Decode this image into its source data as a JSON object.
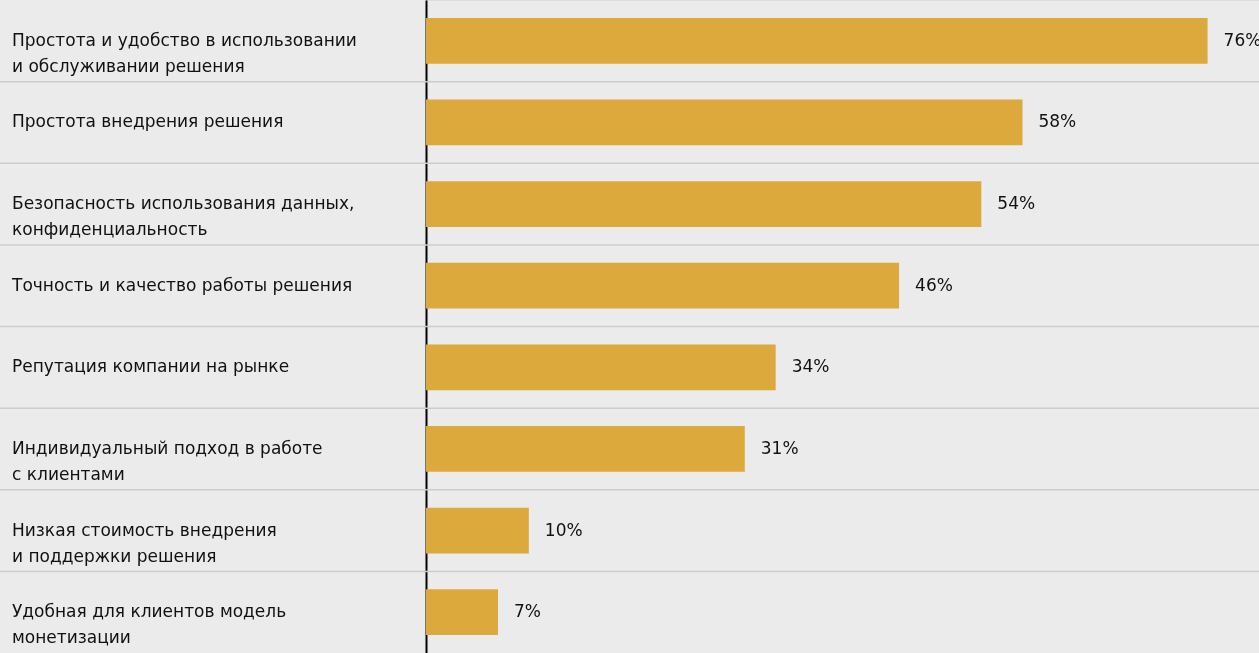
{
  "chart_data": {
    "type": "bar",
    "orientation": "horizontal",
    "categories": [
      "Простота и удобство в использовании и обслуживании решения",
      "Простота внедрения решения",
      "Безопасность использования данных, конфиденциальность",
      "Точность и качество работы решения",
      "Репутация компании на рынке",
      "Индивидуальный подход в работе с клиентами",
      "Низкая стоимость внедрения и поддержки решения",
      "Удобная для клиентов модель монетизации"
    ],
    "values": [
      76,
      58,
      54,
      46,
      34,
      31,
      10,
      7
    ],
    "value_labels": [
      "76%",
      "58%",
      "54%",
      "46%",
      "34%",
      "31%",
      "10%",
      "7%"
    ],
    "color": "#dcaa3c",
    "xlim": [
      0,
      81
    ],
    "grid": "y",
    "tick_labels": "y"
  }
}
